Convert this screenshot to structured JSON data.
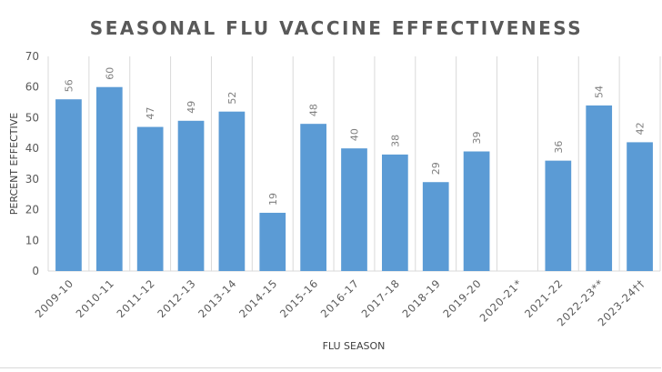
{
  "chart_data": {
    "type": "bar",
    "title": "SEASONAL FLU VACCINE EFFECTIVENESS",
    "xlabel": "FLU SEASON",
    "ylabel": "PERCENT EFFECTIVE",
    "ylim": [
      0,
      70
    ],
    "yticks": [
      0,
      10,
      20,
      30,
      40,
      50,
      60,
      70
    ],
    "categories": [
      "2009-10",
      "2010-11",
      "2011-12",
      "2012-13",
      "2013-14",
      "2014-15",
      "2015-16",
      "2016-17",
      "2017-18",
      "2018-19",
      "2019-20",
      "2020-21*",
      "2021-22",
      "2022-23**",
      "2023-24††"
    ],
    "values": [
      56,
      60,
      47,
      49,
      52,
      19,
      48,
      40,
      38,
      29,
      39,
      null,
      36,
      54,
      42
    ],
    "grid": "vertical category separators",
    "legend": "none",
    "bar_color": "#5b9bd5"
  }
}
